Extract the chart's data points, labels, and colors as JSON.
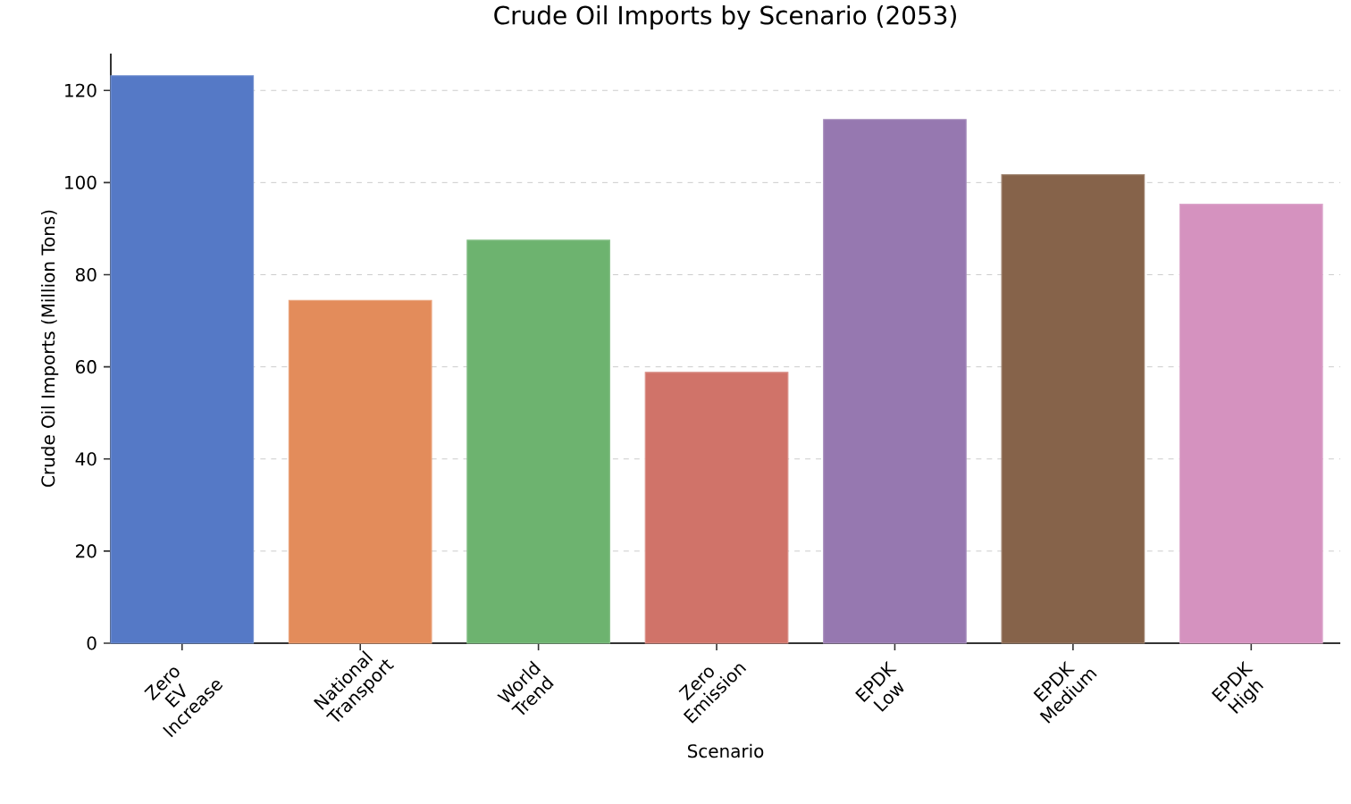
{
  "chart_data": {
    "type": "bar",
    "title": "Crude Oil Imports by Scenario (2053)",
    "xlabel": "Scenario",
    "ylabel": "Crude Oil Imports (Million Tons)",
    "categories": [
      "Zero EV Increase",
      "National Transport",
      "World Trend",
      "Zero Emission",
      "EPDK Low",
      "EPDK Medium",
      "EPDK High"
    ],
    "values": [
      123.2,
      74.4,
      87.5,
      58.8,
      113.7,
      101.7,
      95.3
    ],
    "colors": [
      "#5579c6",
      "#e38c5b",
      "#6db36f",
      "#d07369",
      "#9678b0",
      "#86634a",
      "#d592bf"
    ],
    "ylim": [
      0,
      128
    ],
    "yticks": [
      0,
      20,
      40,
      60,
      80,
      100,
      120
    ],
    "grid": "y"
  }
}
